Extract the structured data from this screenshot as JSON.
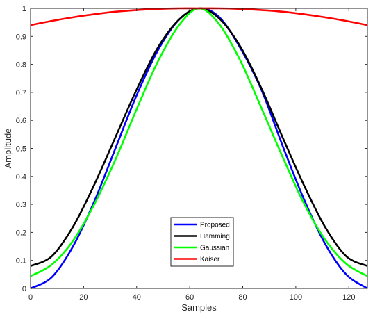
{
  "chart_data": {
    "type": "line",
    "xlabel": "Samples",
    "ylabel": "Amplitude",
    "xlim": [
      0,
      127
    ],
    "ylim": [
      0,
      1
    ],
    "xticks": [
      0,
      20,
      40,
      60,
      80,
      100,
      120
    ],
    "yticks": [
      0,
      0.1,
      0.2,
      0.3,
      0.4,
      0.5,
      0.6,
      0.7,
      0.8,
      0.9,
      1
    ],
    "ytick_labels": [
      "0",
      "0.1",
      "0.2",
      "0.3",
      "0.4",
      "0.5",
      "0.6",
      "0.7",
      "0.8",
      "0.9",
      "1"
    ],
    "grid": false,
    "legend_position": "lower-center",
    "x": [
      0,
      8,
      16,
      24,
      32,
      40,
      48,
      56,
      63.5,
      71,
      79,
      87,
      95,
      103,
      111,
      119,
      127
    ],
    "series": [
      {
        "name": "Proposed",
        "color": "#0000ff",
        "values": [
          0.0,
          0.04,
          0.15,
          0.31,
          0.5,
          0.69,
          0.85,
          0.96,
          1.0,
          0.97,
          0.86,
          0.71,
          0.51,
          0.32,
          0.16,
          0.05,
          0.0
        ]
      },
      {
        "name": "Hamming",
        "color": "#000000",
        "values": [
          0.08,
          0.115,
          0.22,
          0.37,
          0.54,
          0.71,
          0.86,
          0.96,
          1.0,
          0.965,
          0.865,
          0.715,
          0.54,
          0.37,
          0.22,
          0.115,
          0.08
        ]
      },
      {
        "name": "Gaussian",
        "color": "#00ff00",
        "values": [
          0.044,
          0.085,
          0.17,
          0.3,
          0.46,
          0.64,
          0.81,
          0.94,
          1.0,
          0.945,
          0.815,
          0.645,
          0.47,
          0.305,
          0.175,
          0.088,
          0.044
        ]
      },
      {
        "name": "Kaiser",
        "color": "#ff0000",
        "values": [
          0.94,
          0.955,
          0.968,
          0.979,
          0.988,
          0.994,
          0.998,
          1.0,
          1.0,
          1.0,
          0.998,
          0.994,
          0.988,
          0.979,
          0.968,
          0.955,
          0.94
        ]
      }
    ]
  }
}
